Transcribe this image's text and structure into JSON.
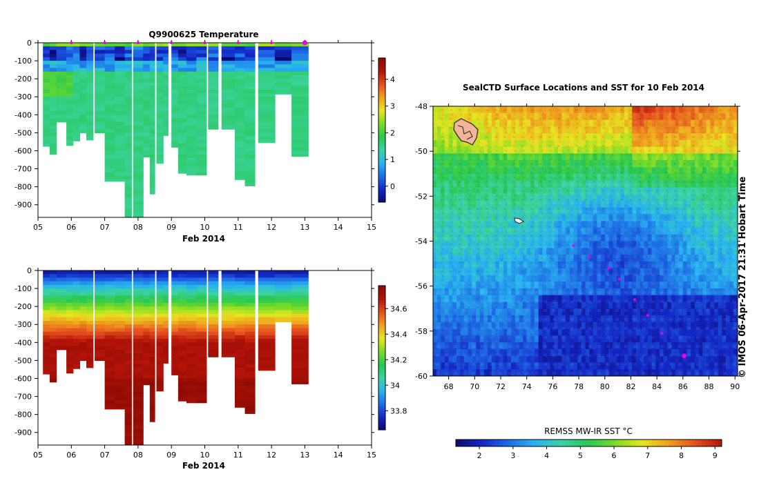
{
  "colors": {
    "section_colormap": [
      "#0a0a6e",
      "#1428c8",
      "#1e6ee6",
      "#28b4f0",
      "#3cd2a0",
      "#28c850",
      "#78dc28",
      "#e6e61e",
      "#f0a01e",
      "#e6501e",
      "#b4140a",
      "#8c0a00"
    ],
    "sst_colormap": [
      "#0a0a6e",
      "#1428c8",
      "#1e6ee6",
      "#28b4f0",
      "#3cd2a0",
      "#28c850",
      "#78dc28",
      "#e6e61e",
      "#f0a01e",
      "#e6501e",
      "#b4140a"
    ],
    "track_marker": "#e600e6"
  },
  "chart_data": [
    {
      "id": "temperature-section",
      "type": "heatmap",
      "title": "Q9900625  Temperature",
      "xlabel": "Feb 2014",
      "ylabel": "",
      "xlim": [
        5,
        15
      ],
      "ylim": [
        -970,
        0
      ],
      "x_ticks": [
        "05",
        "06",
        "07",
        "08",
        "09",
        "10",
        "11",
        "12",
        "13",
        "14",
        "15"
      ],
      "y_ticks": [
        "0",
        "-100",
        "-200",
        "-300",
        "-400",
        "-500",
        "-600",
        "-700",
        "-800",
        "-900"
      ],
      "colorbar_ticks": [
        "0",
        "1",
        "2",
        "3",
        "4"
      ],
      "colorbar_range": [
        -0.6,
        4.8
      ],
      "surface_markers": [
        6.0,
        7.0,
        8.0,
        9.0,
        10.0,
        11.0,
        12.0,
        13.0
      ],
      "profiles": [
        {
          "t": 5.15,
          "w": 0.2,
          "bottom": -575
        },
        {
          "t": 5.35,
          "w": 0.2,
          "bottom": -620
        },
        {
          "t": 5.55,
          "w": 0.3,
          "bottom": -440
        },
        {
          "t": 5.85,
          "w": 0.2,
          "bottom": -570
        },
        {
          "t": 6.05,
          "w": 0.2,
          "bottom": -545
        },
        {
          "t": 6.25,
          "w": 0.2,
          "bottom": -500
        },
        {
          "t": 6.45,
          "w": 0.2,
          "bottom": -540
        },
        {
          "t": 6.7,
          "w": 0.3,
          "bottom": -500
        },
        {
          "t": 7.0,
          "w": 0.3,
          "bottom": -770
        },
        {
          "t": 7.3,
          "w": 0.3,
          "bottom": -770
        },
        {
          "t": 7.6,
          "w": 0.2,
          "bottom": -970
        },
        {
          "t": 7.85,
          "w": 0.3,
          "bottom": -970
        },
        {
          "t": 8.15,
          "w": 0.25,
          "bottom": -635
        },
        {
          "t": 8.35,
          "w": 0.15,
          "bottom": -840
        },
        {
          "t": 8.55,
          "w": 0.2,
          "bottom": -670
        },
        {
          "t": 8.75,
          "w": 0.15,
          "bottom": -515
        },
        {
          "t": 9.0,
          "w": 0.25,
          "bottom": -580
        },
        {
          "t": 9.2,
          "w": 0.25,
          "bottom": -725
        },
        {
          "t": 9.45,
          "w": 0.3,
          "bottom": -735
        },
        {
          "t": 9.75,
          "w": 0.3,
          "bottom": -735
        },
        {
          "t": 10.1,
          "w": 0.3,
          "bottom": -480
        },
        {
          "t": 10.5,
          "w": 0.5,
          "bottom": -480
        },
        {
          "t": 10.9,
          "w": 0.3,
          "bottom": -760
        },
        {
          "t": 11.2,
          "w": 0.3,
          "bottom": -795
        },
        {
          "t": 11.6,
          "w": 0.5,
          "bottom": -555
        },
        {
          "t": 12.1,
          "w": 0.5,
          "bottom": -285
        },
        {
          "t": 12.6,
          "w": 0.5,
          "bottom": -630
        }
      ]
    },
    {
      "id": "salinity-section",
      "type": "heatmap",
      "title": "",
      "xlabel": "Feb 2014",
      "ylabel": "",
      "xlim": [
        5,
        15
      ],
      "ylim": [
        -970,
        0
      ],
      "x_ticks": [
        "05",
        "06",
        "07",
        "08",
        "09",
        "10",
        "11",
        "12",
        "13",
        "14",
        "15"
      ],
      "y_ticks": [
        "0",
        "-100",
        "-200",
        "-300",
        "-400",
        "-500",
        "-600",
        "-700",
        "-800",
        "-900"
      ],
      "colorbar_ticks": [
        "33.8",
        "34",
        "34.2",
        "34.4",
        "34.6"
      ],
      "colorbar_range": [
        33.65,
        34.78
      ],
      "profiles_ref": "temperature-section"
    },
    {
      "id": "sst-map",
      "type": "heatmap",
      "title": "SealCTD Surface Locations and SST for 10 Feb 2014",
      "xlabel": "",
      "ylabel": "",
      "xlim": [
        66.8,
        90.2
      ],
      "ylim": [
        -60,
        -48
      ],
      "x_ticks": [
        "68",
        "70",
        "72",
        "74",
        "76",
        "78",
        "80",
        "82",
        "84",
        "86",
        "88",
        "90"
      ],
      "y_ticks": [
        "-48",
        "-50",
        "-52",
        "-54",
        "-56",
        "-58",
        "-60"
      ],
      "colorbar_label": "REMSS MW-IR SST °C",
      "colorbar_ticks": [
        "2",
        "3",
        "4",
        "5",
        "6",
        "7",
        "8",
        "9"
      ],
      "colorbar_range": [
        1.3,
        9.2
      ],
      "track_points": [
        {
          "lon": 77.6,
          "lat": -54.2
        },
        {
          "lon": 78.8,
          "lat": -54.7
        },
        {
          "lon": 80.3,
          "lat": -55.2
        },
        {
          "lon": 81.1,
          "lat": -55.7
        },
        {
          "lon": 82.3,
          "lat": -56.6
        },
        {
          "lon": 83.3,
          "lat": -57.3
        },
        {
          "lon": 84.4,
          "lat": -58.1
        },
        {
          "lon": 86.1,
          "lat": -59.1
        }
      ]
    }
  ],
  "stamp": "© IMOS 06-Apr-2017 21:31 Hobart Time"
}
